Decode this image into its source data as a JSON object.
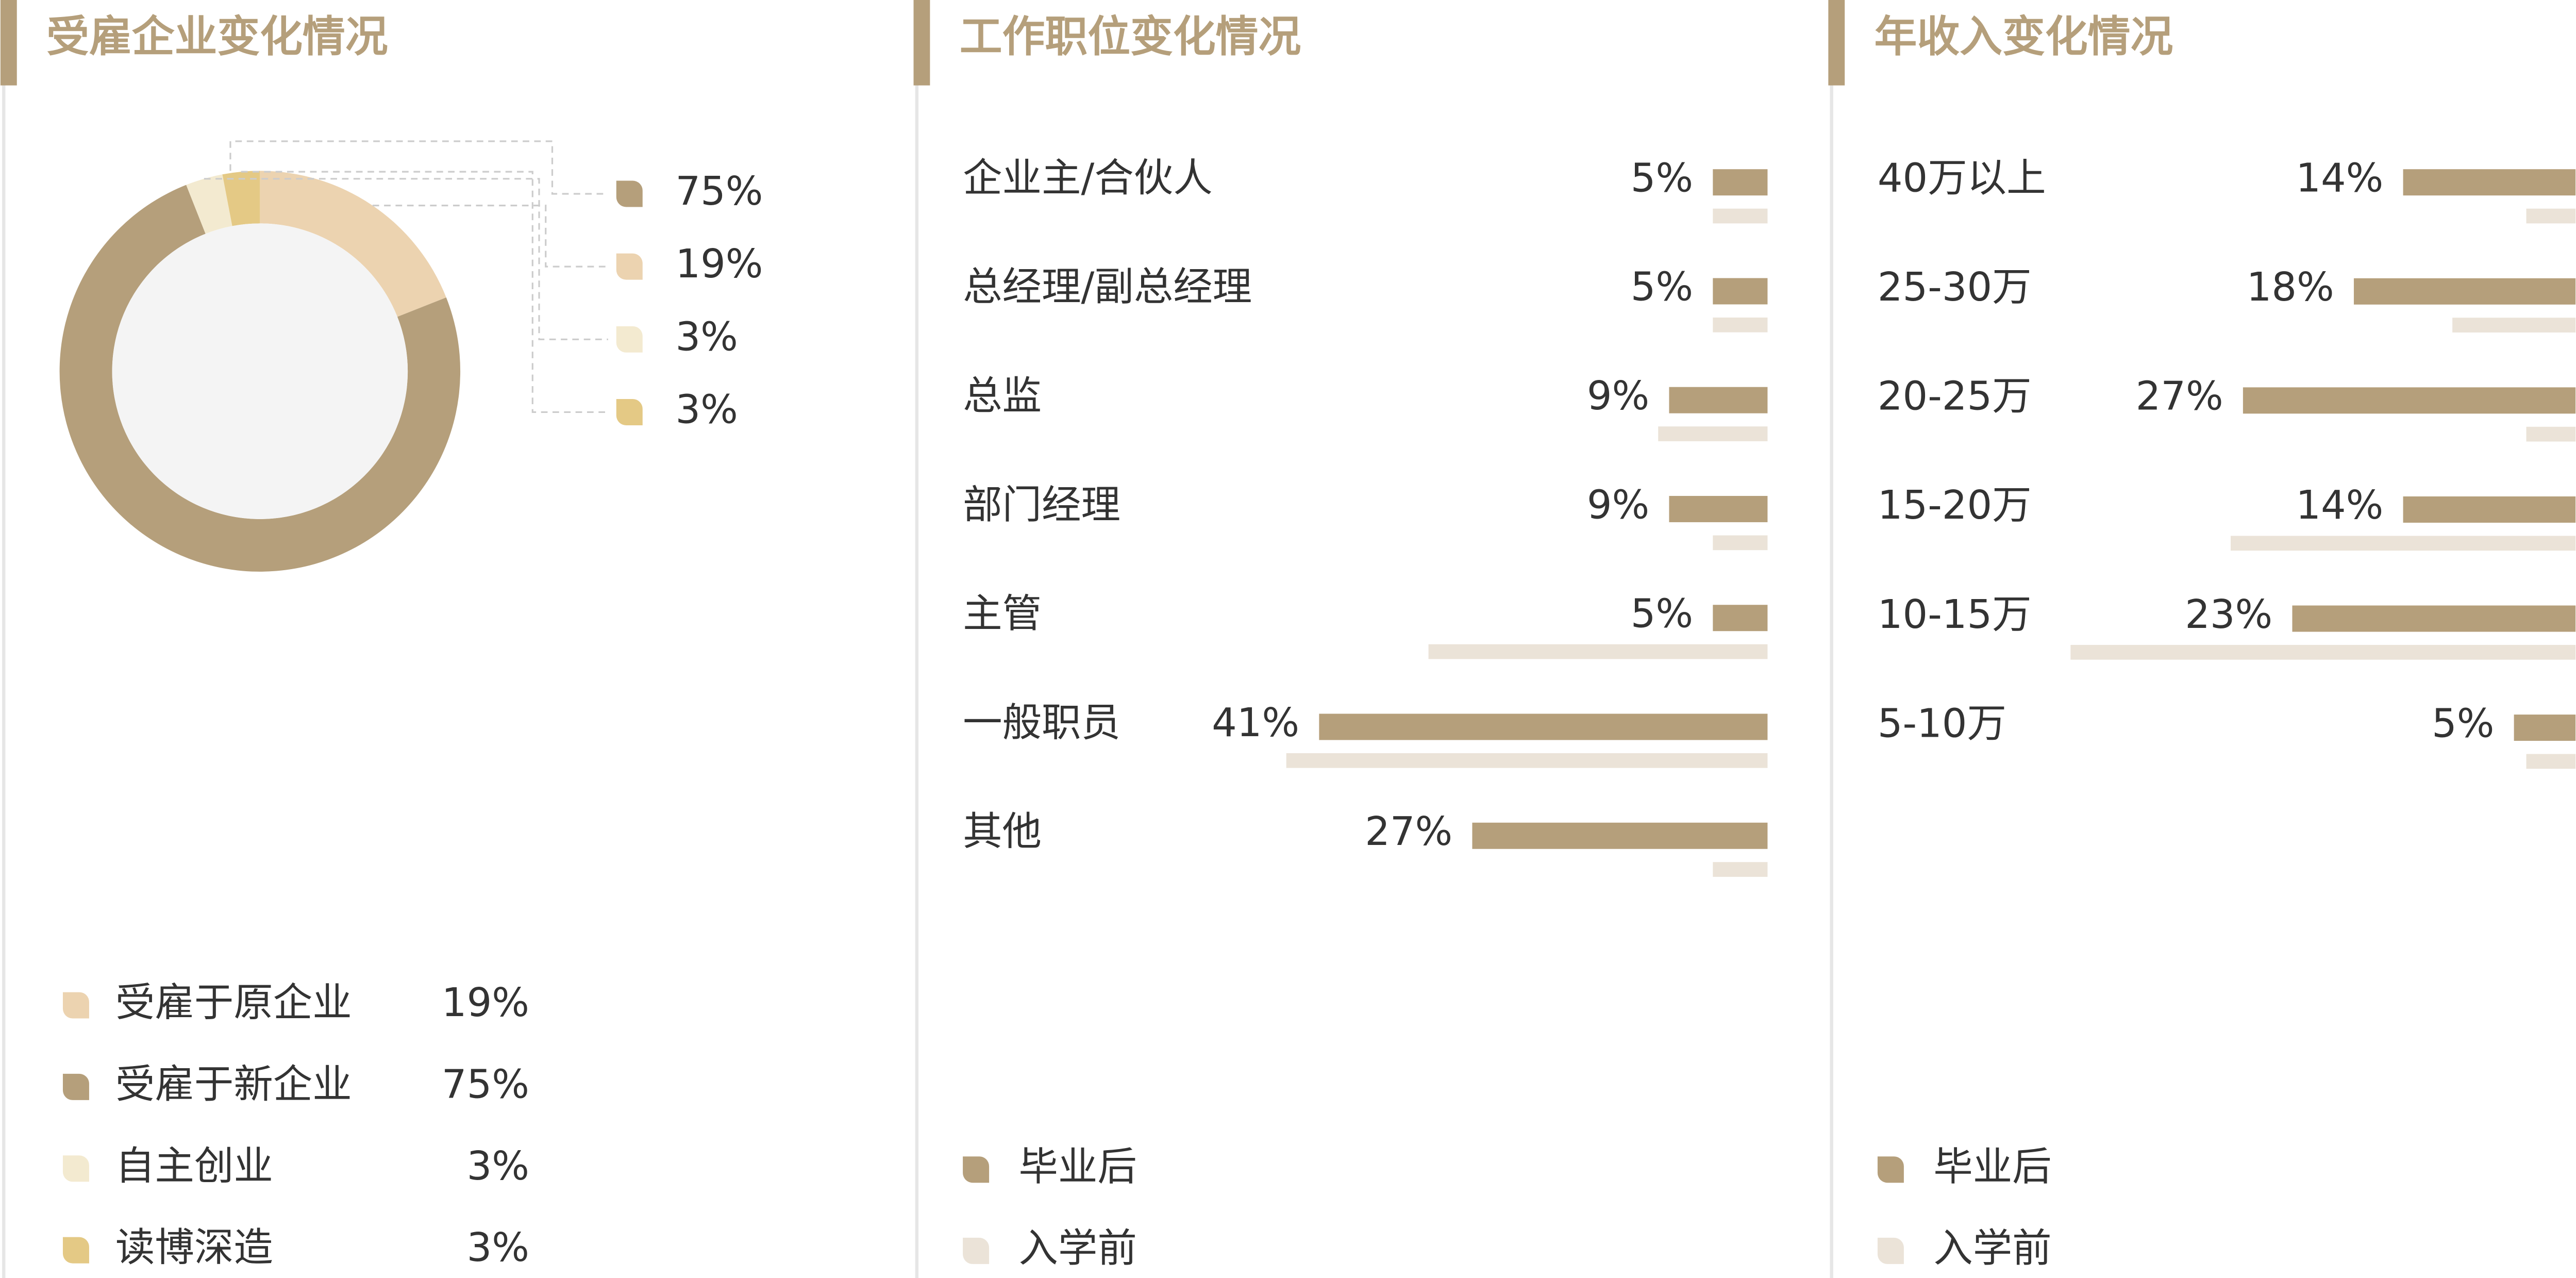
{
  "chart_data": [
    {
      "type": "donut",
      "title": "受雇企业变化情况",
      "categories": [
        "受雇于原企业",
        "受雇于新企业",
        "自主创业",
        "读博深造"
      ],
      "values": [
        19,
        75,
        3,
        3
      ],
      "value_labels": [
        "19%",
        "75%",
        "3%",
        "3%"
      ],
      "colors": [
        "#ecd3b0",
        "#b59f7b",
        "#f3ead0",
        "#e4c985"
      ]
    },
    {
      "type": "hbar",
      "title": "工作职位变化情况",
      "categories": [
        "企业主/合伙人",
        "总经理/副总经理",
        "总监",
        "部门经理",
        "主管",
        "一般职员",
        "其他"
      ],
      "xlim": [
        0,
        50
      ],
      "series": [
        {
          "name": "毕业后",
          "color": "#b59f7b",
          "values": [
            5,
            5,
            9,
            9,
            5,
            41,
            27
          ],
          "value_labels": [
            "5%",
            "5%",
            "9%",
            "9%",
            "5%",
            "41%",
            "27%"
          ]
        },
        {
          "name": "入学前",
          "color": "#ebe3d8",
          "values": [
            5,
            5,
            10,
            5,
            31,
            44,
            5
          ]
        }
      ]
    },
    {
      "type": "hbar",
      "title": "年收入变化情况",
      "categories": [
        "40万以上",
        "25-30万",
        "20-25万",
        "15-20万",
        "10-15万",
        "5-10万"
      ],
      "xlim": [
        0,
        50
      ],
      "series": [
        {
          "name": "毕业后",
          "color": "#b59f7b",
          "values": [
            14,
            18,
            27,
            14,
            23,
            5
          ],
          "value_labels": [
            "14%",
            "18%",
            "27%",
            "14%",
            "23%",
            "5%"
          ]
        },
        {
          "name": "入学前",
          "color": "#ebe3d8",
          "values": [
            4,
            10,
            4,
            28,
            41,
            4
          ]
        }
      ]
    }
  ]
}
